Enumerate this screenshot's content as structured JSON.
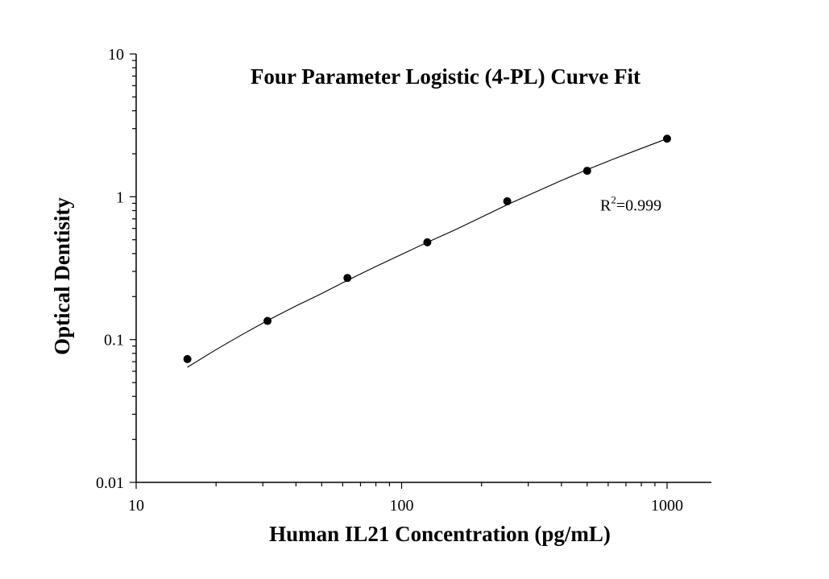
{
  "chart_data": {
    "type": "scatter",
    "title": "Four Parameter Logistic (4-PL) Curve Fit",
    "xlabel": "Human IL21 Concentration (pg/mL)",
    "ylabel": "Optical Dentisity",
    "x_scale": "log",
    "y_scale": "log",
    "xlim": [
      10,
      1500
    ],
    "ylim": [
      0.01,
      10
    ],
    "x_ticks": [
      {
        "value": 10,
        "label": "10"
      },
      {
        "value": 100,
        "label": "100"
      },
      {
        "value": 1000,
        "label": "1000"
      }
    ],
    "y_ticks": [
      {
        "value": 0.01,
        "label": "0.01"
      },
      {
        "value": 0.1,
        "label": "0.1"
      },
      {
        "value": 1,
        "label": "1"
      },
      {
        "value": 10,
        "label": "10"
      }
    ],
    "points": [
      {
        "x": 15.6,
        "y": 0.073
      },
      {
        "x": 31.25,
        "y": 0.135
      },
      {
        "x": 62.5,
        "y": 0.27
      },
      {
        "x": 125,
        "y": 0.48
      },
      {
        "x": 250,
        "y": 0.93
      },
      {
        "x": 500,
        "y": 1.52
      },
      {
        "x": 1000,
        "y": 2.55
      }
    ],
    "fit_curve": [
      {
        "x": 15.6,
        "y": 0.064
      },
      {
        "x": 20,
        "y": 0.085
      },
      {
        "x": 25,
        "y": 0.108
      },
      {
        "x": 31.25,
        "y": 0.136
      },
      {
        "x": 40,
        "y": 0.172
      },
      {
        "x": 50,
        "y": 0.21
      },
      {
        "x": 62.5,
        "y": 0.26
      },
      {
        "x": 80,
        "y": 0.325
      },
      {
        "x": 100,
        "y": 0.395
      },
      {
        "x": 125,
        "y": 0.48
      },
      {
        "x": 160,
        "y": 0.59
      },
      {
        "x": 200,
        "y": 0.72
      },
      {
        "x": 250,
        "y": 0.88
      },
      {
        "x": 320,
        "y": 1.08
      },
      {
        "x": 400,
        "y": 1.3
      },
      {
        "x": 500,
        "y": 1.55
      },
      {
        "x": 630,
        "y": 1.84
      },
      {
        "x": 800,
        "y": 2.18
      },
      {
        "x": 1000,
        "y": 2.55
      }
    ],
    "annotation": {
      "base": "R",
      "sup": "2",
      "rest": "=0.999",
      "x": 560,
      "y": 1.15
    },
    "grid": false,
    "legend": "none",
    "colors": {
      "points": "#000000",
      "curve": "#000000",
      "axes": "#000000"
    }
  }
}
